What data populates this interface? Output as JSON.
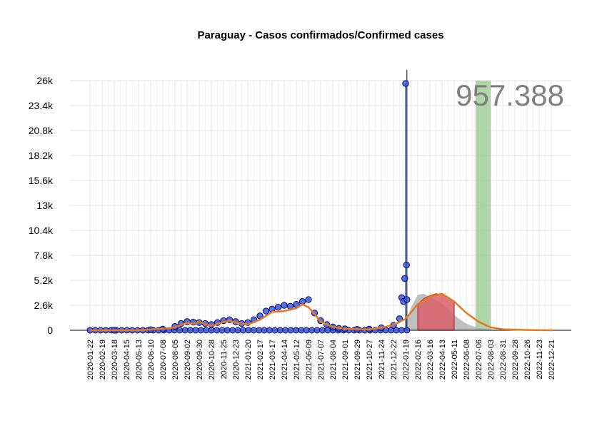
{
  "chart_data": {
    "type": "line",
    "title": "Paraguay - Casos confirmados/Confirmed cases",
    "big_number": "957.388",
    "xlabel": "",
    "ylabel": "",
    "ylim": [
      0,
      26000
    ],
    "y_ticks": [
      0,
      2600,
      5200,
      7800,
      10400,
      13000,
      15600,
      18200,
      20800,
      23400,
      26000
    ],
    "y_tick_labels": [
      "0",
      "2.6k",
      "5.2k",
      "7.8k",
      "10.4k",
      "13k",
      "15.6k",
      "18.2k",
      "20.8k",
      "23.4k",
      "26k"
    ],
    "x_tick_labels": [
      "2020-01-22",
      "2020-02-19",
      "2020-03-18",
      "2020-04-15",
      "2020-05-13",
      "2020-06-10",
      "2020-07-08",
      "2020-08-05",
      "2020-09-02",
      "2020-09-30",
      "2020-10-28",
      "2020-11-25",
      "2020-12-23",
      "2021-01-20",
      "2021-02-17",
      "2021-03-17",
      "2021-04-14",
      "2021-05-12",
      "2021-06-09",
      "2021-07-07",
      "2021-08-04",
      "2021-09-01",
      "2021-09-29",
      "2021-10-27",
      "2021-11-24",
      "2021-12-22",
      "2022-01-19",
      "2022-02-16",
      "2022-03-16",
      "2022-04-13",
      "2022-05-11",
      "2022-06-08",
      "2022-07-06",
      "2022-08-03",
      "2022-08-31",
      "2022-09-28",
      "2022-10-26",
      "2022-11-23",
      "2022-12-21"
    ],
    "grid": true,
    "series": [
      {
        "kind": "observed_daily_points",
        "color": "#3a5bd9",
        "outline": "#0a0a6e",
        "x": [
          "2020-03-18",
          "2020-06-10",
          "2020-07-08",
          "2020-08-05",
          "2020-08-19",
          "2020-09-02",
          "2020-09-16",
          "2020-09-30",
          "2020-10-14",
          "2020-10-28",
          "2020-11-11",
          "2020-11-25",
          "2020-12-09",
          "2020-12-23",
          "2021-01-06",
          "2021-01-20",
          "2021-02-03",
          "2021-02-17",
          "2021-03-03",
          "2021-03-17",
          "2021-03-31",
          "2021-04-14",
          "2021-04-28",
          "2021-05-12",
          "2021-05-26",
          "2021-06-09",
          "2021-06-23",
          "2021-07-07",
          "2021-07-21",
          "2021-08-04",
          "2021-08-18",
          "2021-09-01",
          "2021-09-29",
          "2021-10-27",
          "2021-11-24",
          "2021-12-22",
          "2022-01-05",
          "2022-01-10",
          "2022-01-14",
          "2022-01-17",
          "2022-01-19",
          "2022-01-21",
          "2022-01-22"
        ],
        "y": [
          10,
          60,
          120,
          400,
          700,
          900,
          850,
          800,
          700,
          600,
          800,
          1000,
          1100,
          900,
          700,
          800,
          1100,
          1500,
          2000,
          2200,
          2400,
          2600,
          2500,
          2700,
          3000,
          3200,
          1800,
          1000,
          600,
          350,
          200,
          150,
          100,
          120,
          250,
          500,
          1200,
          3400,
          3000,
          5400,
          25700,
          6800,
          3200
        ]
      },
      {
        "kind": "fitted_curve",
        "color": "#e87722",
        "x": [
          "2020-01-22",
          "2020-05-13",
          "2020-07-08",
          "2020-08-05",
          "2020-09-02",
          "2020-09-16",
          "2020-09-30",
          "2020-10-14",
          "2020-10-28",
          "2020-11-25",
          "2020-12-09",
          "2020-12-23",
          "2021-01-20",
          "2021-02-17",
          "2021-03-17",
          "2021-04-14",
          "2021-05-12",
          "2021-05-26",
          "2021-06-09",
          "2021-06-23",
          "2021-07-07",
          "2021-08-04",
          "2021-09-01",
          "2021-10-27",
          "2021-11-24",
          "2021-12-22",
          "2022-01-19",
          "2022-02-16",
          "2022-03-16",
          "2022-04-13",
          "2022-05-11",
          "2022-06-08",
          "2022-07-06",
          "2022-08-03",
          "2022-08-31",
          "2022-10-26",
          "2022-12-21",
          "2023-01-01"
        ],
        "y": [
          0,
          10,
          150,
          300,
          800,
          650,
          900,
          650,
          450,
          850,
          1000,
          800,
          600,
          1100,
          1900,
          2000,
          2300,
          2700,
          2400,
          1700,
          900,
          350,
          150,
          80,
          250,
          550,
          1200,
          2700,
          3500,
          3800,
          3000,
          1800,
          900,
          300,
          100,
          30,
          0,
          0
        ]
      },
      {
        "kind": "projection_band",
        "color": "#b0b0b0",
        "x": [
          "2022-01-19",
          "2022-02-02",
          "2022-02-16",
          "2022-03-02",
          "2022-03-16",
          "2022-03-30",
          "2022-04-13",
          "2022-04-27",
          "2022-05-11",
          "2022-05-25",
          "2022-06-08",
          "2022-06-22",
          "2022-07-06",
          "2022-07-20",
          "2022-08-03",
          "2022-08-17"
        ],
        "y": [
          900,
          2500,
          3700,
          3800,
          3500,
          3100,
          2800,
          2200,
          1600,
          1100,
          700,
          450,
          250,
          150,
          80,
          40
        ]
      },
      {
        "kind": "highlighted_period",
        "color": "#d9606a",
        "x": [
          "2022-02-16",
          "2022-03-02",
          "2022-03-16",
          "2022-03-30",
          "2022-04-13",
          "2022-04-27",
          "2022-05-11"
        ],
        "y": [
          2700,
          3300,
          3600,
          3800,
          3700,
          3400,
          3000
        ]
      }
    ],
    "markers": [
      {
        "kind": "vertical_line",
        "x": "2022-01-22",
        "color": "#000000"
      },
      {
        "kind": "shaded_band",
        "x_start": "2022-06-29",
        "x_end": "2022-08-03",
        "color": "#9ccb93"
      }
    ]
  }
}
